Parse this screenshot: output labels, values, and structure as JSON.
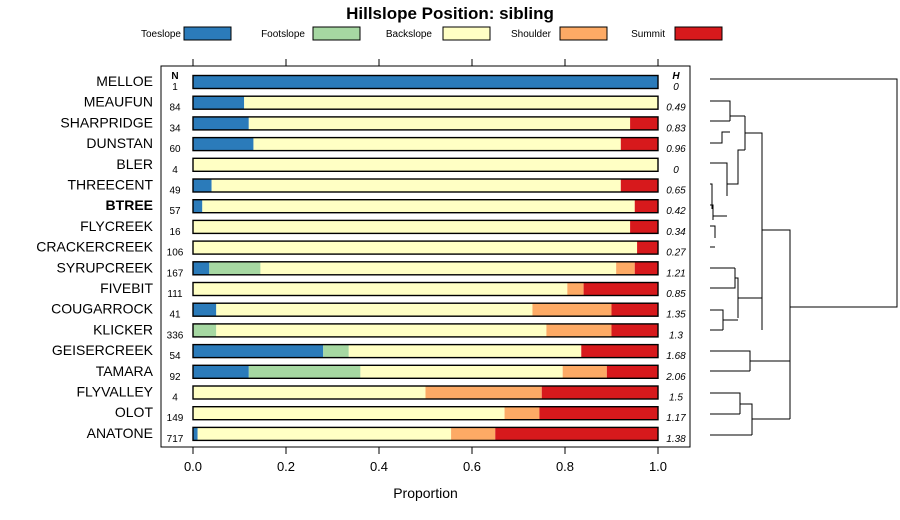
{
  "chart_data": {
    "type": "bar",
    "stacked": true,
    "orientation": "horizontal",
    "title": "Hillslope Position: sibling",
    "xlabel": "Proportion",
    "xlim": [
      0,
      1
    ],
    "xticks": [
      "0.0",
      "0.2",
      "0.4",
      "0.6",
      "0.8",
      "1.0"
    ],
    "n_header": "N",
    "h_header": "H",
    "legend": [
      "Toeslope",
      "Footslope",
      "Backslope",
      "Shoulder",
      "Summit"
    ],
    "colors": {
      "Toeslope": "#2b7bba",
      "Footslope": "#a6d8a2",
      "Backslope": "#ffffc4",
      "Shoulder": "#fdaa65",
      "Summit": "#d7191c"
    },
    "highlight": "BTREE",
    "dendrogram": true,
    "rows": [
      {
        "name": "MELLOE",
        "n": "1",
        "h": "0",
        "values": [
          1.0,
          0.0,
          0.0,
          0.0,
          0.0
        ]
      },
      {
        "name": "MEAUFUN",
        "n": "84",
        "h": "0.49",
        "values": [
          0.11,
          0.0,
          0.89,
          0.0,
          0.0
        ]
      },
      {
        "name": "SHARPRIDGE",
        "n": "34",
        "h": "0.83",
        "values": [
          0.12,
          0.0,
          0.82,
          0.0,
          0.06
        ]
      },
      {
        "name": "DUNSTAN",
        "n": "60",
        "h": "0.96",
        "values": [
          0.13,
          0.0,
          0.79,
          0.0,
          0.08
        ]
      },
      {
        "name": "BLER",
        "n": "4",
        "h": "0",
        "values": [
          0.0,
          0.0,
          1.0,
          0.0,
          0.0
        ]
      },
      {
        "name": "THREECENT",
        "n": "49",
        "h": "0.65",
        "values": [
          0.04,
          0.0,
          0.88,
          0.0,
          0.08
        ]
      },
      {
        "name": "BTREE",
        "n": "57",
        "h": "0.42",
        "values": [
          0.02,
          0.0,
          0.93,
          0.0,
          0.05
        ]
      },
      {
        "name": "FLYCREEK",
        "n": "16",
        "h": "0.34",
        "values": [
          0.0,
          0.0,
          0.94,
          0.0,
          0.06
        ]
      },
      {
        "name": "CRACKERCREEK",
        "n": "106",
        "h": "0.27",
        "values": [
          0.0,
          0.0,
          0.955,
          0.0,
          0.045
        ]
      },
      {
        "name": "SYRUPCREEK",
        "n": "167",
        "h": "1.21",
        "values": [
          0.035,
          0.11,
          0.765,
          0.04,
          0.05
        ]
      },
      {
        "name": "FIVEBIT",
        "n": "111",
        "h": "0.85",
        "values": [
          0.0,
          0.0,
          0.805,
          0.035,
          0.16
        ]
      },
      {
        "name": "COUGARROCK",
        "n": "41",
        "h": "1.35",
        "values": [
          0.05,
          0.0,
          0.68,
          0.17,
          0.1
        ]
      },
      {
        "name": "KLICKER",
        "n": "336",
        "h": "1.3",
        "values": [
          0.0,
          0.05,
          0.71,
          0.14,
          0.1
        ]
      },
      {
        "name": "GEISERCREEK",
        "n": "54",
        "h": "1.68",
        "values": [
          0.28,
          0.055,
          0.5,
          0.0,
          0.165
        ]
      },
      {
        "name": "TAMARA",
        "n": "92",
        "h": "2.06",
        "values": [
          0.12,
          0.24,
          0.435,
          0.095,
          0.11
        ]
      },
      {
        "name": "FLYVALLEY",
        "n": "4",
        "h": "1.5",
        "values": [
          0.0,
          0.0,
          0.5,
          0.25,
          0.25
        ]
      },
      {
        "name": "OLOT",
        "n": "149",
        "h": "1.17",
        "values": [
          0.0,
          0.0,
          0.67,
          0.075,
          0.255
        ]
      },
      {
        "name": "ANATONE",
        "n": "717",
        "h": "1.38",
        "values": [
          0.01,
          0.0,
          0.545,
          0.095,
          0.35
        ]
      }
    ]
  }
}
